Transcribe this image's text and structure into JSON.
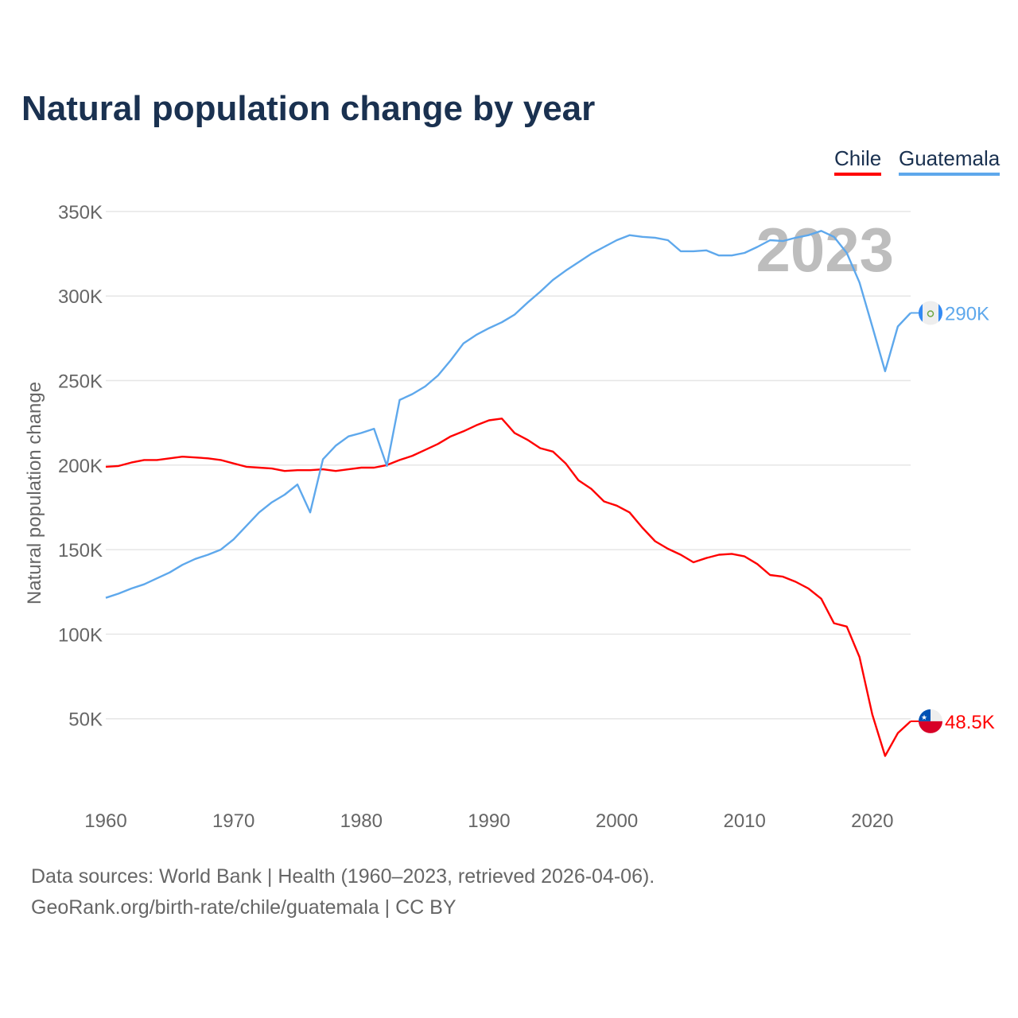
{
  "chart_data": {
    "type": "line",
    "title": "Natural population change by year",
    "ylabel": "Natural population change",
    "xlabel": "",
    "ylim": [
      0,
      350000
    ],
    "xlim": [
      1960,
      2023
    ],
    "grid": true,
    "legend_position": "top-right",
    "watermark_year": "2023",
    "x_ticks": [
      "1960",
      "1970",
      "1980",
      "1990",
      "2000",
      "2010",
      "2020"
    ],
    "y_ticks": [
      {
        "value": 50000,
        "label": "50K"
      },
      {
        "value": 100000,
        "label": "100K"
      },
      {
        "value": 150000,
        "label": "150K"
      },
      {
        "value": 200000,
        "label": "200K"
      },
      {
        "value": 250000,
        "label": "250K"
      },
      {
        "value": 300000,
        "label": "300K"
      },
      {
        "value": 350000,
        "label": "350K"
      }
    ],
    "x": [
      1960,
      1961,
      1962,
      1963,
      1964,
      1965,
      1966,
      1967,
      1968,
      1969,
      1970,
      1971,
      1972,
      1973,
      1974,
      1975,
      1976,
      1977,
      1978,
      1979,
      1980,
      1981,
      1982,
      1983,
      1984,
      1985,
      1986,
      1987,
      1988,
      1989,
      1990,
      1991,
      1992,
      1993,
      1994,
      1995,
      1996,
      1997,
      1998,
      1999,
      2000,
      2001,
      2002,
      2003,
      2004,
      2005,
      2006,
      2007,
      2008,
      2009,
      2010,
      2011,
      2012,
      2013,
      2014,
      2015,
      2016,
      2017,
      2018,
      2019,
      2020,
      2021,
      2022,
      2023
    ],
    "series": [
      {
        "name": "Chile",
        "color": "#ff0000",
        "end_label": "48.5K",
        "flag": "chile-flag",
        "values": [
          199000,
          199500,
          201500,
          203000,
          203000,
          204000,
          205000,
          204500,
          204000,
          203000,
          201000,
          199000,
          198500,
          198000,
          196500,
          197000,
          197000,
          197500,
          196500,
          197500,
          198500,
          198500,
          200000,
          203000,
          205500,
          209000,
          212500,
          217000,
          220000,
          223500,
          226500,
          227500,
          219000,
          215000,
          210000,
          208000,
          201000,
          191000,
          186000,
          178500,
          176000,
          172000,
          163000,
          155000,
          150500,
          147000,
          142500,
          145000,
          147000,
          147500,
          146000,
          141500,
          135000,
          134000,
          131000,
          127000,
          121000,
          106500,
          104500,
          86500,
          52500,
          28000,
          41500,
          48500
        ]
      },
      {
        "name": "Guatemala",
        "color": "#5ea8ec",
        "end_label": "290K",
        "flag": "guatemala-flag",
        "values": [
          121500,
          124000,
          127000,
          129500,
          133000,
          136500,
          141000,
          144500,
          147000,
          150000,
          156000,
          164000,
          172000,
          178000,
          182500,
          188500,
          172000,
          203500,
          211500,
          217000,
          219000,
          221500,
          199500,
          238500,
          242000,
          246500,
          253000,
          262000,
          272000,
          277000,
          281000,
          284500,
          289000,
          296000,
          302500,
          309500,
          315000,
          320000,
          325000,
          329000,
          333000,
          336000,
          335000,
          334500,
          333000,
          326500,
          326500,
          327000,
          324000,
          324000,
          325500,
          329000,
          333000,
          332500,
          334500,
          336000,
          338500,
          335000,
          325500,
          308000,
          282000,
          255500,
          282000,
          290000
        ]
      }
    ]
  },
  "footer": {
    "line1": "Data sources: World Bank | Health (1960–2023, retrieved 2026-04-06).",
    "line2": "GeoRank.org/birth-rate/chile/guatemala | CC BY"
  }
}
